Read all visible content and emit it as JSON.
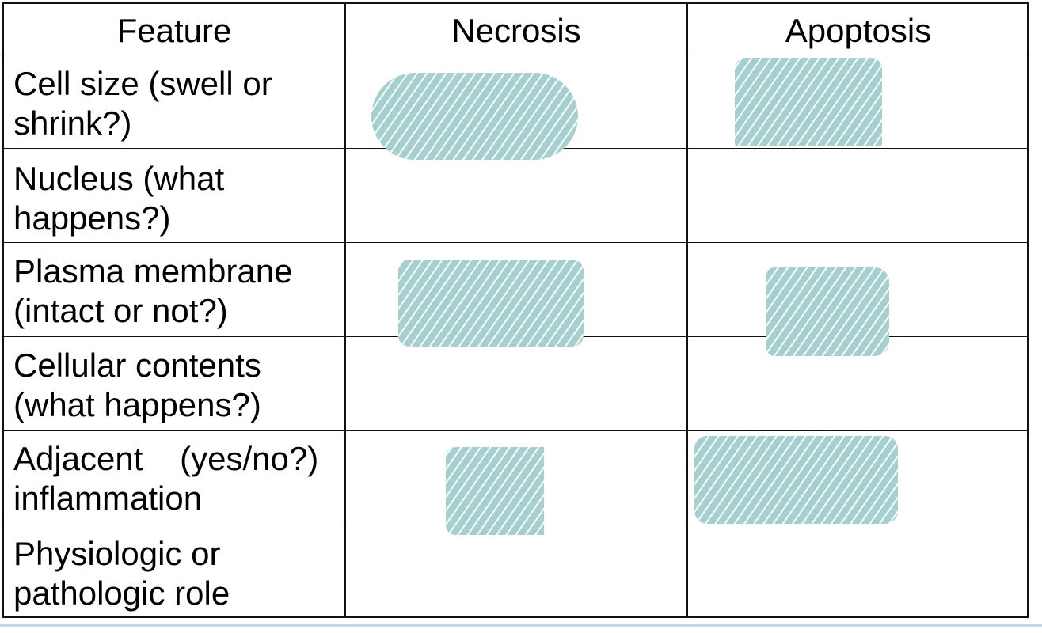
{
  "table": {
    "headers": [
      "Feature",
      "Necrosis",
      "Apoptosis"
    ],
    "rows": [
      {
        "feature": "Cell size (swell or\nshrink?)"
      },
      {
        "feature": "Nucleus (what\nhappens?)"
      },
      {
        "feature": "Plasma membrane\n(intact or not?)"
      },
      {
        "feature": "Cellular contents\n(what happens?)"
      },
      {
        "feature": "Adjacent    (yes/no?)\ninflammation"
      },
      {
        "feature": "Physiologic or\npathologic role"
      }
    ]
  },
  "colors": {
    "redaction_fill": "#a6d0d0",
    "grid_line": "#111111"
  }
}
